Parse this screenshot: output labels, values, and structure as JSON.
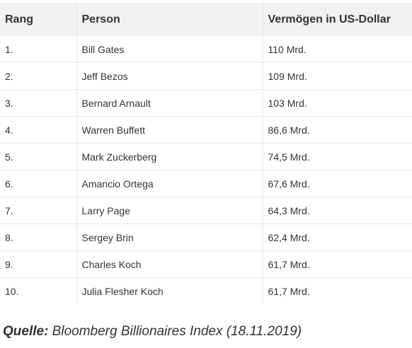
{
  "table": {
    "headers": [
      "Rang",
      "Person",
      "Vermögen in US-Dollar"
    ],
    "rows": [
      [
        "1.",
        "Bill Gates",
        "110 Mrd."
      ],
      [
        "2.",
        "Jeff Bezos",
        "109 Mrd."
      ],
      [
        "3.",
        "Bernard Arnault",
        "103 Mrd."
      ],
      [
        "4.",
        "Warren Buffett",
        "86,6 Mrd."
      ],
      [
        "5.",
        "Mark Zuckerberg",
        "74,5 Mrd."
      ],
      [
        "6.",
        "Amancio Ortega",
        "67,6 Mrd."
      ],
      [
        "7.",
        "Larry Page",
        "64,3 Mrd."
      ],
      [
        "8.",
        "Sergey Brin",
        "62,4 Mrd."
      ],
      [
        "9.",
        "Charles Koch",
        "61,7 Mrd."
      ],
      [
        "10.",
        "Julia Flesher Koch",
        "61,7 Mrd."
      ]
    ]
  },
  "source": {
    "label": "Quelle:",
    "text": " Bloomberg Billionaires Index (18.11.2019)"
  }
}
